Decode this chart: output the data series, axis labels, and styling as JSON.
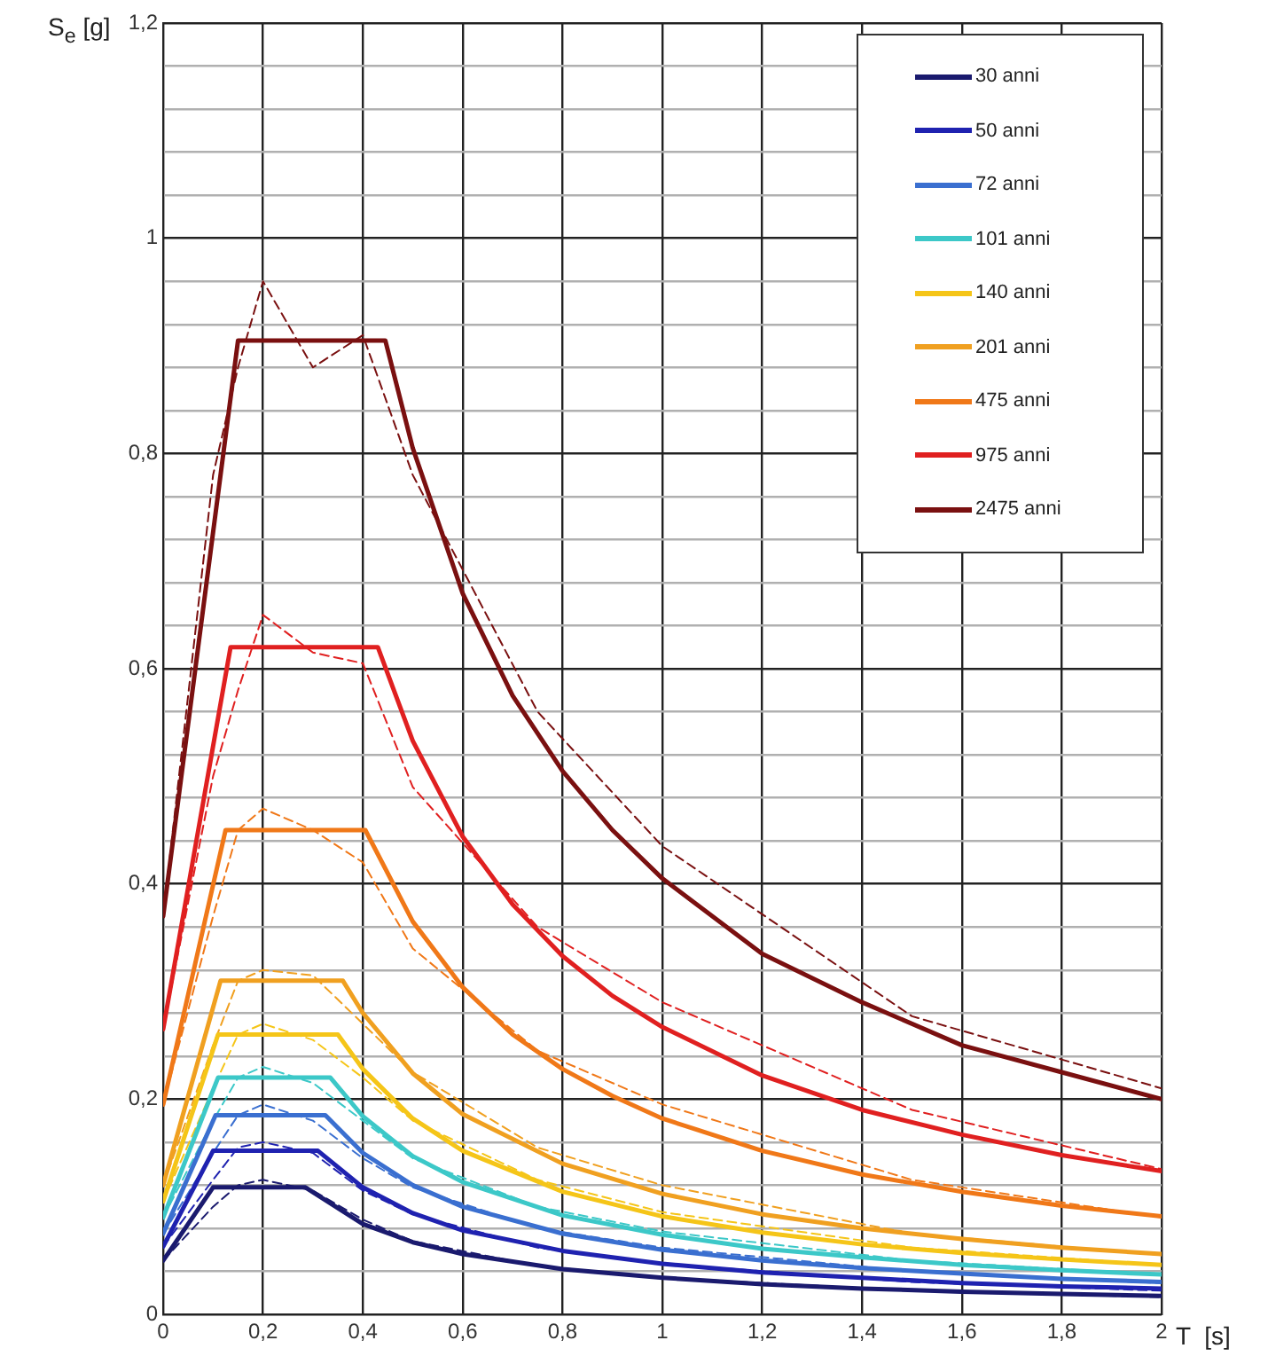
{
  "chart_data": {
    "type": "line",
    "xlabel": "T  [s]",
    "ylabel": "S$_{e}$ [g]",
    "xlim": [
      0,
      2
    ],
    "xticks": [
      0,
      {
        "value": 0.2,
        "label": "0,2"
      },
      {
        "value": 0.4,
        "label": "0,4"
      },
      {
        "value": 0.6,
        "label": "0,6"
      },
      {
        "value": 0.8,
        "label": "0,8"
      },
      1,
      {
        "value": 1.2,
        "label": "1,2"
      },
      {
        "value": 1.4,
        "label": "1,4"
      },
      {
        "value": 1.6,
        "label": "1,6"
      },
      {
        "value": 1.8,
        "label": "1,8"
      },
      2
    ],
    "ylim": [
      0,
      1.2
    ],
    "yticks": [
      0,
      {
        "value": 0.04,
        "label": null
      },
      {
        "value": 0.08,
        "label": null
      },
      {
        "value": 0.12,
        "label": null
      },
      {
        "value": 0.16,
        "label": null
      },
      {
        "value": 0.2,
        "label": "0,2"
      },
      {
        "value": 0.24,
        "label": null
      },
      {
        "value": 0.28,
        "label": null
      },
      {
        "value": 0.32,
        "label": null
      },
      {
        "value": 0.36,
        "label": null
      },
      {
        "value": 0.4,
        "label": "0,4"
      },
      {
        "value": 0.44,
        "label": null
      },
      {
        "value": 0.48,
        "label": null
      },
      {
        "value": 0.52,
        "label": null
      },
      {
        "value": 0.56,
        "label": null
      },
      {
        "value": 0.6,
        "label": "0,6"
      },
      {
        "value": 0.64,
        "label": null
      },
      {
        "value": 0.68,
        "label": null
      },
      {
        "value": 0.72,
        "label": null
      },
      {
        "value": 0.76,
        "label": null
      },
      {
        "value": 0.8,
        "label": "0,8"
      },
      {
        "value": 0.84,
        "label": null
      },
      {
        "value": 0.88,
        "label": null
      },
      {
        "value": 0.92,
        "label": null
      },
      {
        "value": 0.96,
        "label": null
      },
      1,
      {
        "value": 1.04,
        "label": null
      },
      {
        "value": 1.08,
        "label": null
      },
      {
        "value": 1.12,
        "label": null
      },
      {
        "value": 1.16,
        "label": null
      },
      {
        "value": 1.2,
        "label": "1,2"
      }
    ],
    "grid": true,
    "legend": "top right",
    "series": [
      {
        "name": "30 anni",
        "color": "#1a1a6e",
        "x": [
          0,
          0.1,
          0.285,
          0.4,
          0.5,
          0.6,
          0.8,
          1,
          1.2,
          1.4,
          1.6,
          1.8,
          2
        ],
        "values": [
          0.05,
          0.118,
          0.118,
          0.084,
          0.067,
          0.056,
          0.042,
          0.034,
          0.028,
          0.024,
          0.021,
          0.019,
          0.017
        ]
      },
      {
        "name": "50 anni",
        "color": "#1f22b0",
        "x": [
          0,
          0.1,
          0.31,
          0.4,
          0.5,
          0.6,
          0.8,
          1,
          1.2,
          1.4,
          1.6,
          1.8,
          2
        ],
        "values": [
          0.063,
          0.152,
          0.152,
          0.118,
          0.094,
          0.078,
          0.059,
          0.047,
          0.039,
          0.034,
          0.029,
          0.026,
          0.024
        ]
      },
      {
        "name": "72 anni",
        "color": "#3a6fd0",
        "x": [
          0,
          0.105,
          0.325,
          0.4,
          0.5,
          0.6,
          0.8,
          1,
          1.2,
          1.4,
          1.6,
          1.8,
          2
        ],
        "values": [
          0.075,
          0.185,
          0.185,
          0.15,
          0.12,
          0.1,
          0.075,
          0.06,
          0.05,
          0.043,
          0.038,
          0.033,
          0.03
        ]
      },
      {
        "name": "101 anni",
        "color": "#3cc8c8",
        "x": [
          0,
          0.11,
          0.335,
          0.4,
          0.5,
          0.6,
          0.8,
          1,
          1.2,
          1.4,
          1.6,
          1.8,
          2
        ],
        "values": [
          0.09,
          0.22,
          0.22,
          0.184,
          0.147,
          0.123,
          0.092,
          0.074,
          0.061,
          0.053,
          0.046,
          0.041,
          0.037
        ]
      },
      {
        "name": "140 anni",
        "color": "#f5c518",
        "x": [
          0,
          0.11,
          0.35,
          0.4,
          0.5,
          0.6,
          0.8,
          1,
          1.2,
          1.4,
          1.6,
          1.8,
          2
        ],
        "values": [
          0.105,
          0.26,
          0.26,
          0.228,
          0.182,
          0.152,
          0.114,
          0.091,
          0.076,
          0.065,
          0.057,
          0.051,
          0.046
        ]
      },
      {
        "name": "201 anni",
        "color": "#f0a020",
        "x": [
          0,
          0.115,
          0.36,
          0.4,
          0.5,
          0.6,
          0.8,
          1,
          1.2,
          1.4,
          1.6,
          1.8,
          2
        ],
        "values": [
          0.12,
          0.31,
          0.31,
          0.28,
          0.224,
          0.186,
          0.14,
          0.112,
          0.093,
          0.08,
          0.07,
          0.062,
          0.056
        ]
      },
      {
        "name": "475 anni",
        "color": "#f07818",
        "x": [
          0,
          0.125,
          0.405,
          0.5,
          0.6,
          0.7,
          0.8,
          0.9,
          1,
          1.2,
          1.4,
          1.6,
          1.8,
          2
        ],
        "values": [
          0.195,
          0.45,
          0.45,
          0.365,
          0.304,
          0.26,
          0.228,
          0.203,
          0.182,
          0.152,
          0.13,
          0.114,
          0.101,
          0.091
        ]
      },
      {
        "name": "975 anni",
        "color": "#e02020",
        "x": [
          0,
          0.135,
          0.43,
          0.5,
          0.6,
          0.7,
          0.8,
          0.9,
          1,
          1.2,
          1.4,
          1.6,
          1.8,
          2
        ],
        "values": [
          0.265,
          0.62,
          0.62,
          0.533,
          0.444,
          0.381,
          0.333,
          0.296,
          0.267,
          0.222,
          0.19,
          0.167,
          0.148,
          0.133
        ]
      },
      {
        "name": "2475 anni",
        "color": "#7a1010",
        "x": [
          0,
          0.15,
          0.445,
          0.5,
          0.6,
          0.7,
          0.8,
          0.9,
          1,
          1.2,
          1.4,
          1.6,
          1.8,
          2
        ],
        "values": [
          0.37,
          0.905,
          0.905,
          0.805,
          0.67,
          0.575,
          0.505,
          0.45,
          0.405,
          0.335,
          0.29,
          0.25,
          0.225,
          0.2
        ]
      },
      {
        "color": "#1a1a6e",
        "line_style": "dashed",
        "x": [
          0,
          0.1,
          0.15,
          0.2,
          0.3,
          0.4,
          0.5,
          0.75,
          1,
          1.5,
          2
        ],
        "values": [
          0.05,
          0.1,
          0.12,
          0.125,
          0.115,
          0.088,
          0.068,
          0.045,
          0.034,
          0.022,
          0.016
        ]
      },
      {
        "color": "#1f22b0",
        "line_style": "dashed",
        "x": [
          0,
          0.1,
          0.15,
          0.2,
          0.3,
          0.4,
          0.5,
          0.75,
          1,
          1.5,
          2
        ],
        "values": [
          0.063,
          0.125,
          0.155,
          0.16,
          0.15,
          0.115,
          0.093,
          0.062,
          0.047,
          0.03,
          0.022
        ]
      },
      {
        "color": "#3a6fd0",
        "line_style": "dashed",
        "x": [
          0,
          0.1,
          0.15,
          0.2,
          0.3,
          0.4,
          0.5,
          0.75,
          1,
          1.5,
          2
        ],
        "values": [
          0.075,
          0.15,
          0.185,
          0.195,
          0.18,
          0.145,
          0.118,
          0.08,
          0.062,
          0.04,
          0.029
        ]
      },
      {
        "color": "#3cc8c8",
        "line_style": "dashed",
        "x": [
          0,
          0.1,
          0.15,
          0.2,
          0.3,
          0.4,
          0.5,
          0.75,
          1,
          1.5,
          2
        ],
        "values": [
          0.09,
          0.18,
          0.22,
          0.23,
          0.215,
          0.18,
          0.145,
          0.1,
          0.077,
          0.05,
          0.037
        ]
      },
      {
        "color": "#f5c518",
        "line_style": "dashed",
        "x": [
          0,
          0.1,
          0.15,
          0.2,
          0.3,
          0.4,
          0.5,
          0.75,
          1,
          1.5,
          2
        ],
        "values": [
          0.105,
          0.21,
          0.26,
          0.27,
          0.255,
          0.22,
          0.18,
          0.125,
          0.095,
          0.062,
          0.046
        ]
      },
      {
        "color": "#f0a020",
        "line_style": "dashed",
        "x": [
          0,
          0.1,
          0.15,
          0.2,
          0.3,
          0.4,
          0.5,
          0.75,
          1,
          1.5,
          2
        ],
        "values": [
          0.12,
          0.25,
          0.31,
          0.32,
          0.315,
          0.27,
          0.225,
          0.155,
          0.12,
          0.075,
          0.055
        ]
      },
      {
        "color": "#f07818",
        "line_style": "dashed",
        "x": [
          0,
          0.1,
          0.15,
          0.2,
          0.3,
          0.4,
          0.5,
          0.75,
          1,
          1.5,
          2
        ],
        "values": [
          0.195,
          0.37,
          0.45,
          0.47,
          0.45,
          0.42,
          0.34,
          0.245,
          0.195,
          0.125,
          0.09
        ]
      },
      {
        "color": "#e02020",
        "line_style": "dashed",
        "x": [
          0,
          0.1,
          0.15,
          0.2,
          0.3,
          0.4,
          0.5,
          0.75,
          1,
          1.5,
          2
        ],
        "values": [
          0.265,
          0.5,
          0.58,
          0.65,
          0.615,
          0.605,
          0.49,
          0.36,
          0.29,
          0.19,
          0.135
        ]
      },
      {
        "color": "#7a1010",
        "line_style": "dashed",
        "x": [
          0,
          0.1,
          0.15,
          0.2,
          0.3,
          0.4,
          0.5,
          0.75,
          1,
          1.5,
          2
        ],
        "values": [
          0.37,
          0.78,
          0.88,
          0.96,
          0.88,
          0.91,
          0.78,
          0.56,
          0.435,
          0.277,
          0.21
        ]
      }
    ]
  }
}
